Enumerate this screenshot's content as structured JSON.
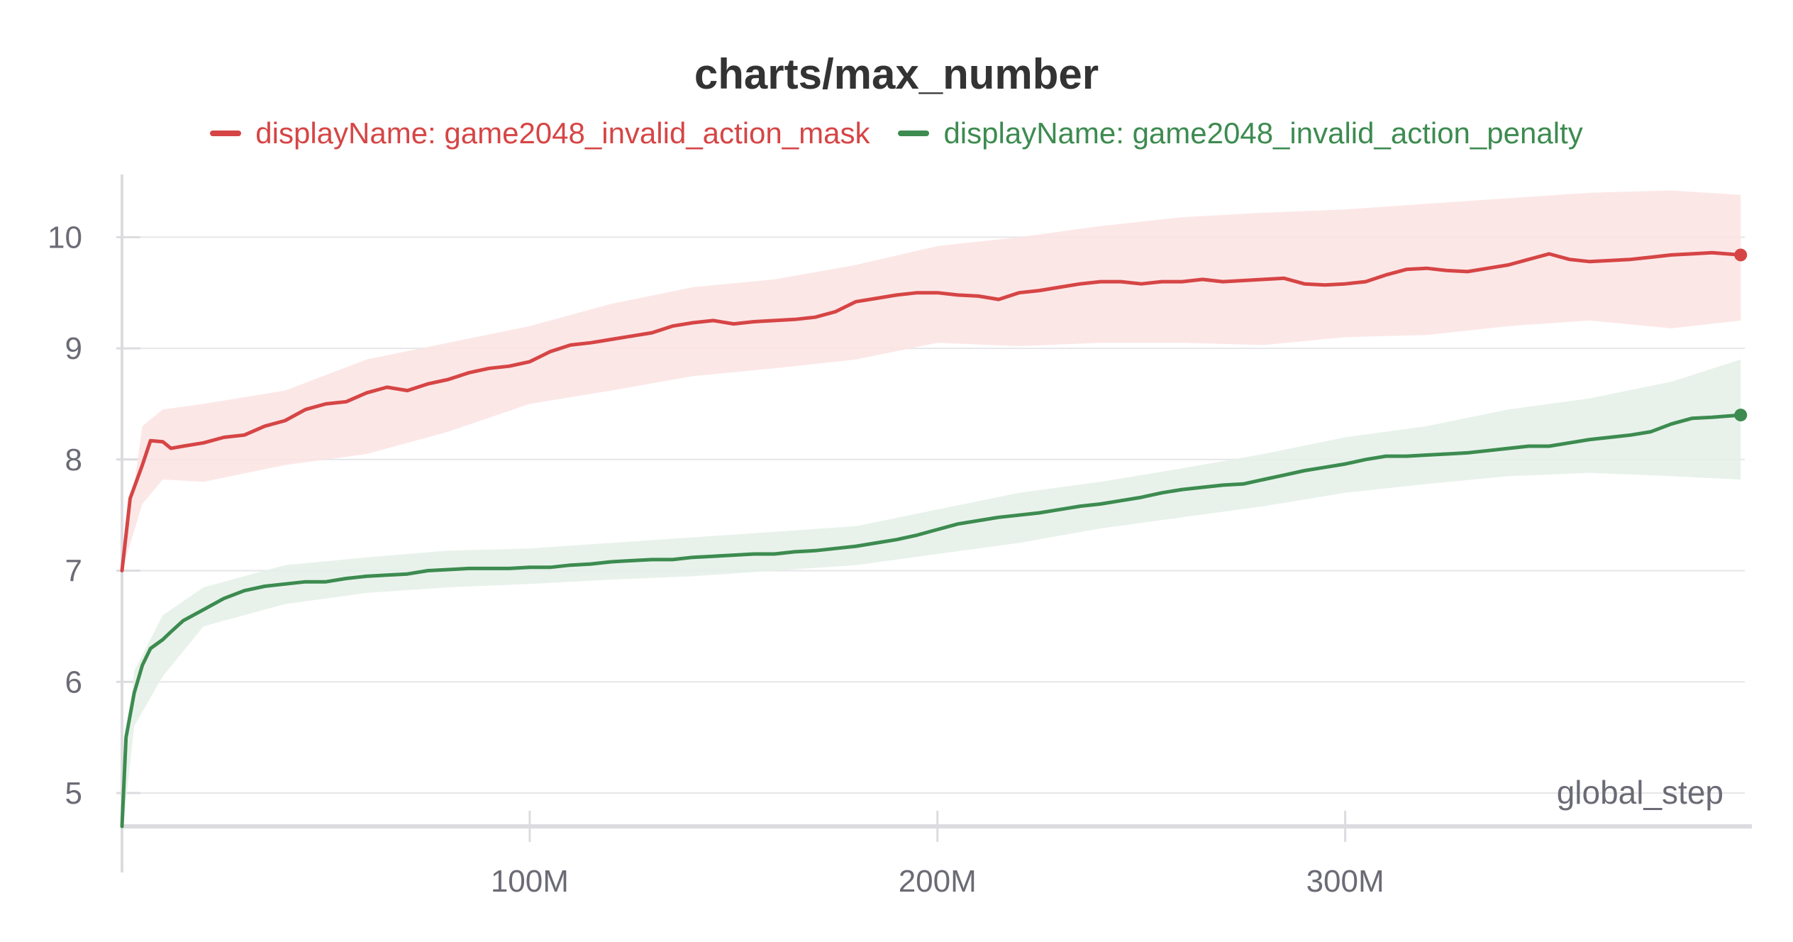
{
  "chart_data": {
    "type": "line",
    "title": "charts/max_number",
    "xlabel": "global_step",
    "ylabel": "",
    "xlim": [
      0,
      398000000
    ],
    "ylim": [
      4.7,
      10.5
    ],
    "x_ticks": [
      100000000,
      200000000,
      300000000
    ],
    "x_tick_labels": [
      "100M",
      "200M",
      "300M"
    ],
    "y_ticks": [
      5,
      6,
      7,
      8,
      9,
      10
    ],
    "y_tick_labels": [
      "5",
      "6",
      "7",
      "8",
      "9",
      "10"
    ],
    "grid": true,
    "legend_position": "top-center",
    "series": [
      {
        "name": "displayName: game2048_invalid_action_mask",
        "color": "#d64545",
        "band_color": "#fbe3e3",
        "points": [
          [
            0,
            7.0
          ],
          [
            2000000,
            7.65
          ],
          [
            5000000,
            7.95
          ],
          [
            7000000,
            8.17
          ],
          [
            10000000,
            8.16
          ],
          [
            12000000,
            8.1
          ],
          [
            15000000,
            8.12
          ],
          [
            20000000,
            8.15
          ],
          [
            25000000,
            8.2
          ],
          [
            30000000,
            8.22
          ],
          [
            35000000,
            8.3
          ],
          [
            40000000,
            8.35
          ],
          [
            45000000,
            8.45
          ],
          [
            50000000,
            8.5
          ],
          [
            55000000,
            8.52
          ],
          [
            60000000,
            8.6
          ],
          [
            65000000,
            8.65
          ],
          [
            70000000,
            8.62
          ],
          [
            75000000,
            8.68
          ],
          [
            80000000,
            8.72
          ],
          [
            85000000,
            8.78
          ],
          [
            90000000,
            8.82
          ],
          [
            95000000,
            8.84
          ],
          [
            100000000,
            8.88
          ],
          [
            105000000,
            8.97
          ],
          [
            110000000,
            9.03
          ],
          [
            115000000,
            9.05
          ],
          [
            120000000,
            9.08
          ],
          [
            125000000,
            9.11
          ],
          [
            130000000,
            9.14
          ],
          [
            135000000,
            9.2
          ],
          [
            140000000,
            9.23
          ],
          [
            145000000,
            9.25
          ],
          [
            150000000,
            9.22
          ],
          [
            155000000,
            9.24
          ],
          [
            160000000,
            9.25
          ],
          [
            165000000,
            9.26
          ],
          [
            170000000,
            9.28
          ],
          [
            175000000,
            9.33
          ],
          [
            180000000,
            9.42
          ],
          [
            185000000,
            9.45
          ],
          [
            190000000,
            9.48
          ],
          [
            195000000,
            9.5
          ],
          [
            200000000,
            9.5
          ],
          [
            205000000,
            9.48
          ],
          [
            210000000,
            9.47
          ],
          [
            215000000,
            9.44
          ],
          [
            220000000,
            9.5
          ],
          [
            225000000,
            9.52
          ],
          [
            230000000,
            9.55
          ],
          [
            235000000,
            9.58
          ],
          [
            240000000,
            9.6
          ],
          [
            245000000,
            9.6
          ],
          [
            250000000,
            9.58
          ],
          [
            255000000,
            9.6
          ],
          [
            260000000,
            9.6
          ],
          [
            265000000,
            9.62
          ],
          [
            270000000,
            9.6
          ],
          [
            275000000,
            9.61
          ],
          [
            280000000,
            9.62
          ],
          [
            285000000,
            9.63
          ],
          [
            290000000,
            9.58
          ],
          [
            295000000,
            9.57
          ],
          [
            300000000,
            9.58
          ],
          [
            305000000,
            9.6
          ],
          [
            310000000,
            9.66
          ],
          [
            315000000,
            9.71
          ],
          [
            320000000,
            9.72
          ],
          [
            325000000,
            9.7
          ],
          [
            330000000,
            9.69
          ],
          [
            335000000,
            9.72
          ],
          [
            340000000,
            9.75
          ],
          [
            345000000,
            9.8
          ],
          [
            350000000,
            9.85
          ],
          [
            355000000,
            9.8
          ],
          [
            360000000,
            9.78
          ],
          [
            365000000,
            9.79
          ],
          [
            370000000,
            9.8
          ],
          [
            375000000,
            9.82
          ],
          [
            380000000,
            9.84
          ],
          [
            385000000,
            9.85
          ],
          [
            390000000,
            9.86
          ],
          [
            397000000,
            9.84
          ]
        ],
        "band_upper": [
          [
            0,
            7.0
          ],
          [
            5000000,
            8.3
          ],
          [
            10000000,
            8.45
          ],
          [
            20000000,
            8.5
          ],
          [
            40000000,
            8.62
          ],
          [
            60000000,
            8.9
          ],
          [
            80000000,
            9.05
          ],
          [
            100000000,
            9.2
          ],
          [
            120000000,
            9.4
          ],
          [
            140000000,
            9.55
          ],
          [
            160000000,
            9.62
          ],
          [
            180000000,
            9.75
          ],
          [
            200000000,
            9.92
          ],
          [
            220000000,
            10.0
          ],
          [
            240000000,
            10.1
          ],
          [
            260000000,
            10.18
          ],
          [
            280000000,
            10.22
          ],
          [
            300000000,
            10.25
          ],
          [
            320000000,
            10.3
          ],
          [
            340000000,
            10.35
          ],
          [
            360000000,
            10.4
          ],
          [
            380000000,
            10.42
          ],
          [
            397000000,
            10.38
          ]
        ],
        "band_lower": [
          [
            0,
            7.0
          ],
          [
            5000000,
            7.6
          ],
          [
            10000000,
            7.82
          ],
          [
            20000000,
            7.8
          ],
          [
            40000000,
            7.95
          ],
          [
            60000000,
            8.05
          ],
          [
            80000000,
            8.25
          ],
          [
            100000000,
            8.5
          ],
          [
            120000000,
            8.62
          ],
          [
            140000000,
            8.75
          ],
          [
            160000000,
            8.82
          ],
          [
            180000000,
            8.9
          ],
          [
            200000000,
            9.05
          ],
          [
            220000000,
            9.02
          ],
          [
            240000000,
            9.05
          ],
          [
            260000000,
            9.05
          ],
          [
            280000000,
            9.03
          ],
          [
            300000000,
            9.1
          ],
          [
            320000000,
            9.12
          ],
          [
            340000000,
            9.2
          ],
          [
            360000000,
            9.25
          ],
          [
            380000000,
            9.18
          ],
          [
            397000000,
            9.25
          ]
        ]
      },
      {
        "name": "displayName: game2048_invalid_action_penalty",
        "color": "#3d8b50",
        "band_color": "#e4f0e8",
        "points": [
          [
            0,
            4.7
          ],
          [
            1000000,
            5.5
          ],
          [
            3000000,
            5.9
          ],
          [
            5000000,
            6.15
          ],
          [
            7000000,
            6.3
          ],
          [
            10000000,
            6.38
          ],
          [
            12000000,
            6.45
          ],
          [
            15000000,
            6.55
          ],
          [
            20000000,
            6.65
          ],
          [
            25000000,
            6.75
          ],
          [
            30000000,
            6.82
          ],
          [
            35000000,
            6.86
          ],
          [
            40000000,
            6.88
          ],
          [
            45000000,
            6.9
          ],
          [
            50000000,
            6.9
          ],
          [
            55000000,
            6.93
          ],
          [
            60000000,
            6.95
          ],
          [
            65000000,
            6.96
          ],
          [
            70000000,
            6.97
          ],
          [
            75000000,
            7.0
          ],
          [
            80000000,
            7.01
          ],
          [
            85000000,
            7.02
          ],
          [
            90000000,
            7.02
          ],
          [
            95000000,
            7.02
          ],
          [
            100000000,
            7.03
          ],
          [
            105000000,
            7.03
          ],
          [
            110000000,
            7.05
          ],
          [
            115000000,
            7.06
          ],
          [
            120000000,
            7.08
          ],
          [
            125000000,
            7.09
          ],
          [
            130000000,
            7.1
          ],
          [
            135000000,
            7.1
          ],
          [
            140000000,
            7.12
          ],
          [
            145000000,
            7.13
          ],
          [
            150000000,
            7.14
          ],
          [
            155000000,
            7.15
          ],
          [
            160000000,
            7.15
          ],
          [
            165000000,
            7.17
          ],
          [
            170000000,
            7.18
          ],
          [
            175000000,
            7.2
          ],
          [
            180000000,
            7.22
          ],
          [
            185000000,
            7.25
          ],
          [
            190000000,
            7.28
          ],
          [
            195000000,
            7.32
          ],
          [
            200000000,
            7.37
          ],
          [
            205000000,
            7.42
          ],
          [
            210000000,
            7.45
          ],
          [
            215000000,
            7.48
          ],
          [
            220000000,
            7.5
          ],
          [
            225000000,
            7.52
          ],
          [
            230000000,
            7.55
          ],
          [
            235000000,
            7.58
          ],
          [
            240000000,
            7.6
          ],
          [
            245000000,
            7.63
          ],
          [
            250000000,
            7.66
          ],
          [
            255000000,
            7.7
          ],
          [
            260000000,
            7.73
          ],
          [
            265000000,
            7.75
          ],
          [
            270000000,
            7.77
          ],
          [
            275000000,
            7.78
          ],
          [
            280000000,
            7.82
          ],
          [
            285000000,
            7.86
          ],
          [
            290000000,
            7.9
          ],
          [
            295000000,
            7.93
          ],
          [
            300000000,
            7.96
          ],
          [
            305000000,
            8.0
          ],
          [
            310000000,
            8.03
          ],
          [
            315000000,
            8.03
          ],
          [
            320000000,
            8.04
          ],
          [
            325000000,
            8.05
          ],
          [
            330000000,
            8.06
          ],
          [
            335000000,
            8.08
          ],
          [
            340000000,
            8.1
          ],
          [
            345000000,
            8.12
          ],
          [
            350000000,
            8.12
          ],
          [
            355000000,
            8.15
          ],
          [
            360000000,
            8.18
          ],
          [
            365000000,
            8.2
          ],
          [
            370000000,
            8.22
          ],
          [
            375000000,
            8.25
          ],
          [
            380000000,
            8.32
          ],
          [
            385000000,
            8.37
          ],
          [
            390000000,
            8.38
          ],
          [
            397000000,
            8.4
          ]
        ],
        "band_upper": [
          [
            0,
            4.9
          ],
          [
            3000000,
            6.1
          ],
          [
            10000000,
            6.6
          ],
          [
            20000000,
            6.85
          ],
          [
            40000000,
            7.05
          ],
          [
            60000000,
            7.12
          ],
          [
            80000000,
            7.18
          ],
          [
            100000000,
            7.2
          ],
          [
            120000000,
            7.25
          ],
          [
            140000000,
            7.3
          ],
          [
            160000000,
            7.35
          ],
          [
            180000000,
            7.4
          ],
          [
            200000000,
            7.55
          ],
          [
            220000000,
            7.7
          ],
          [
            240000000,
            7.8
          ],
          [
            260000000,
            7.92
          ],
          [
            280000000,
            8.05
          ],
          [
            300000000,
            8.2
          ],
          [
            320000000,
            8.3
          ],
          [
            340000000,
            8.45
          ],
          [
            360000000,
            8.55
          ],
          [
            380000000,
            8.7
          ],
          [
            397000000,
            8.9
          ]
        ],
        "band_lower": [
          [
            0,
            4.6
          ],
          [
            3000000,
            5.6
          ],
          [
            10000000,
            6.05
          ],
          [
            20000000,
            6.5
          ],
          [
            40000000,
            6.7
          ],
          [
            60000000,
            6.8
          ],
          [
            80000000,
            6.85
          ],
          [
            100000000,
            6.88
          ],
          [
            120000000,
            6.92
          ],
          [
            140000000,
            6.95
          ],
          [
            160000000,
            7.0
          ],
          [
            180000000,
            7.05
          ],
          [
            200000000,
            7.15
          ],
          [
            220000000,
            7.25
          ],
          [
            240000000,
            7.38
          ],
          [
            260000000,
            7.48
          ],
          [
            280000000,
            7.58
          ],
          [
            300000000,
            7.7
          ],
          [
            320000000,
            7.78
          ],
          [
            340000000,
            7.85
          ],
          [
            360000000,
            7.88
          ],
          [
            380000000,
            7.85
          ],
          [
            397000000,
            7.82
          ]
        ]
      }
    ]
  }
}
